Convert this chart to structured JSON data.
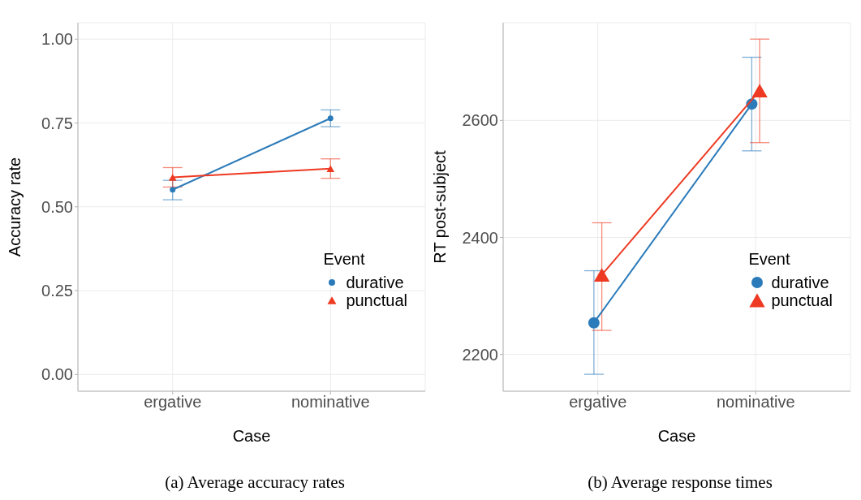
{
  "chart_data": [
    {
      "type": "line",
      "xlabel": "Case",
      "ylabel": "Accuracy rate",
      "legend_title": "Event",
      "categories": [
        "ergative",
        "nominative"
      ],
      "series": [
        {
          "name": "durative",
          "color": "#2b7bba",
          "marker": "circle",
          "values": [
            0.551,
            0.764
          ],
          "errors": [
            [
              0.521,
              0.579
            ],
            [
              0.739,
              0.789
            ]
          ]
        },
        {
          "name": "punctual",
          "color": "#ee3a22",
          "marker": "triangle",
          "values": [
            0.588,
            0.614
          ],
          "errors": [
            [
              0.559,
              0.617
            ],
            [
              0.585,
              0.643
            ]
          ]
        }
      ],
      "ylim": [
        -0.05,
        1.049
      ],
      "yticks": [
        {
          "value": 0,
          "label": "0.00"
        },
        0.25,
        {
          "value": 0.5,
          "label": "0.50"
        },
        0.75,
        {
          "value": 1,
          "label": "1.00"
        }
      ],
      "grid": true,
      "legend": "right",
      "line_style": "solid",
      "annotations": [
        "(a) Average accuracy rates"
      ]
    },
    {
      "type": "line",
      "xlabel": "Case",
      "ylabel": "RT post-subject",
      "legend_title": "Event",
      "categories": [
        "ergative",
        "nominative"
      ],
      "series": [
        {
          "name": "durative",
          "color": "#2b7bba",
          "marker": "circle",
          "values": [
            2254,
            2628
          ],
          "errors": [
            [
              2166,
              2343
            ],
            [
              2548,
              2708
            ]
          ]
        },
        {
          "name": "punctual",
          "color": "#ee3a22",
          "marker": "triangle",
          "values": [
            2336,
            2651
          ],
          "errors": [
            [
              2241,
              2425
            ],
            [
              2562,
              2739
            ]
          ]
        }
      ],
      "ylim": [
        2137,
        2767
      ],
      "yticks": [
        2200,
        2400,
        2600
      ],
      "grid": true,
      "legend": "right",
      "line_style": "solid",
      "annotations": [
        "(b) Average response times"
      ]
    }
  ]
}
